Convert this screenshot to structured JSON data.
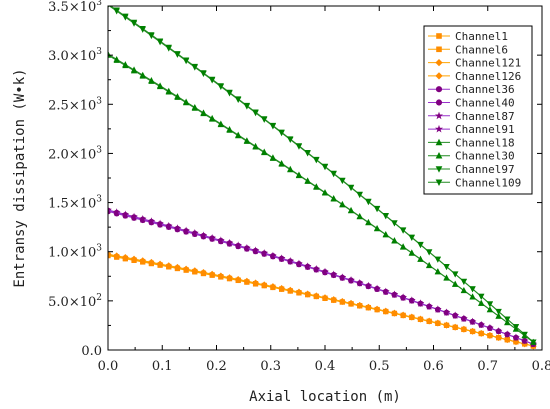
{
  "chart_data": {
    "type": "line",
    "xlabel": "Axial location (m)",
    "ylabel": "Entransy dissipation (W•k)",
    "xlim": [
      0.0,
      0.8
    ],
    "ylim": [
      0,
      3500
    ],
    "x_ticks": [
      0.0,
      0.1,
      0.2,
      0.3,
      0.4,
      0.5,
      0.6,
      0.7,
      0.8
    ],
    "x_tick_labels": [
      "0.0",
      "0.1",
      "0.2",
      "0.3",
      "0.4",
      "0.5",
      "0.6",
      "0.7",
      "0.8"
    ],
    "y_ticks": [
      0,
      500,
      1000,
      1500,
      2000,
      2500,
      3000,
      3500
    ],
    "y_tick_labels": [
      {
        "mantissa": "0.0",
        "exp": ""
      },
      {
        "mantissa": "5.0×10",
        "exp": "2"
      },
      {
        "mantissa": "1.0×10",
        "exp": "3"
      },
      {
        "mantissa": "1.5×10",
        "exp": "3"
      },
      {
        "mantissa": "2.0×10",
        "exp": "3"
      },
      {
        "mantissa": "2.5×10",
        "exp": "3"
      },
      {
        "mantissa": "3.0×10",
        "exp": "3"
      },
      {
        "mantissa": "3.5×10",
        "exp": "3"
      }
    ],
    "grid": false,
    "legend_position": "top-right",
    "x_points": [
      0.0,
      0.016,
      0.032,
      0.048,
      0.064,
      0.08,
      0.096,
      0.112,
      0.128,
      0.144,
      0.16,
      0.176,
      0.192,
      0.208,
      0.224,
      0.24,
      0.256,
      0.272,
      0.288,
      0.304,
      0.32,
      0.336,
      0.352,
      0.368,
      0.384,
      0.4,
      0.416,
      0.432,
      0.448,
      0.464,
      0.48,
      0.496,
      0.512,
      0.528,
      0.544,
      0.56,
      0.576,
      0.592,
      0.608,
      0.624,
      0.64,
      0.656,
      0.672,
      0.688,
      0.704,
      0.72,
      0.736,
      0.752,
      0.768,
      0.784
    ],
    "series": [
      {
        "name": "Channel1",
        "marker": "square",
        "color": "#ff8c00",
        "line": "#ffa500",
        "y_start": 960,
        "y_end": 40,
        "curve": 0.15
      },
      {
        "name": "Channel6",
        "marker": "square",
        "color": "#ff8c00",
        "line": "#ffa500",
        "y_start": 965,
        "y_end": 40,
        "curve": 0.15
      },
      {
        "name": "Channel121",
        "marker": "diamond",
        "color": "#ff8c00",
        "line": "#ffa500",
        "y_start": 970,
        "y_end": 40,
        "curve": 0.15
      },
      {
        "name": "Channel126",
        "marker": "diamond",
        "color": "#ff8c00",
        "line": "#ffa500",
        "y_start": 975,
        "y_end": 40,
        "curve": 0.15
      },
      {
        "name": "Channel36",
        "marker": "circle",
        "color": "#800080",
        "line": "#9932cc",
        "y_start": 1410,
        "y_end": 60,
        "curve": 0.2
      },
      {
        "name": "Channel40",
        "marker": "circle",
        "color": "#800080",
        "line": "#9932cc",
        "y_start": 1420,
        "y_end": 60,
        "curve": 0.2
      },
      {
        "name": "Channel87",
        "marker": "star",
        "color": "#800080",
        "line": "#9932cc",
        "y_start": 1415,
        "y_end": 60,
        "curve": 0.2
      },
      {
        "name": "Channel91",
        "marker": "star",
        "color": "#800080",
        "line": "#9932cc",
        "y_start": 1425,
        "y_end": 60,
        "curve": 0.2
      },
      {
        "name": "Channel18",
        "marker": "triangle-up",
        "color": "#008000",
        "line": "#228b22",
        "y_start": 3000,
        "y_end": 80,
        "curve": 0.12
      },
      {
        "name": "Channel30",
        "marker": "triangle-up",
        "color": "#008000",
        "line": "#228b22",
        "y_start": 3010,
        "y_end": 80,
        "curve": 0.12
      },
      {
        "name": "Channel97",
        "marker": "triangle-down",
        "color": "#008000",
        "line": "#228b22",
        "y_start": 3510,
        "y_end": 80,
        "curve": 0.12
      },
      {
        "name": "Channel109",
        "marker": "triangle-down",
        "color": "#008000",
        "line": "#228b22",
        "y_start": 3520,
        "y_end": 80,
        "curve": 0.12
      }
    ]
  }
}
